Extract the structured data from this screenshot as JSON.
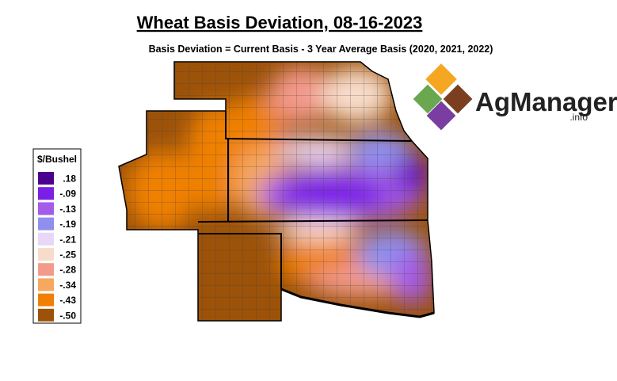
{
  "title": "Wheat Basis Deviation, 08-16-2023",
  "subtitle": "Basis Deviation = Current Basis - 3 Year Average Basis (2020, 2021, 2022)",
  "legend": {
    "title": "$/Bushel",
    "items": [
      {
        "label": ".18",
        "color": "#4b0090"
      },
      {
        "label": "-.09",
        "color": "#7a1fe6"
      },
      {
        "label": "-.13",
        "color": "#a45ce8"
      },
      {
        "label": "-.19",
        "color": "#8f8ff0"
      },
      {
        "label": "-.21",
        "color": "#ead6f7"
      },
      {
        "label": "-.25",
        "color": "#f8dccb"
      },
      {
        "label": "-.28",
        "color": "#f39a8c"
      },
      {
        "label": "-.34",
        "color": "#f5a85e"
      },
      {
        "label": "-.43",
        "color": "#f08000"
      },
      {
        "label": "-.50",
        "color": "#9c5209"
      }
    ]
  },
  "logo": {
    "name": "AgManager",
    "suffix": ".info"
  }
}
